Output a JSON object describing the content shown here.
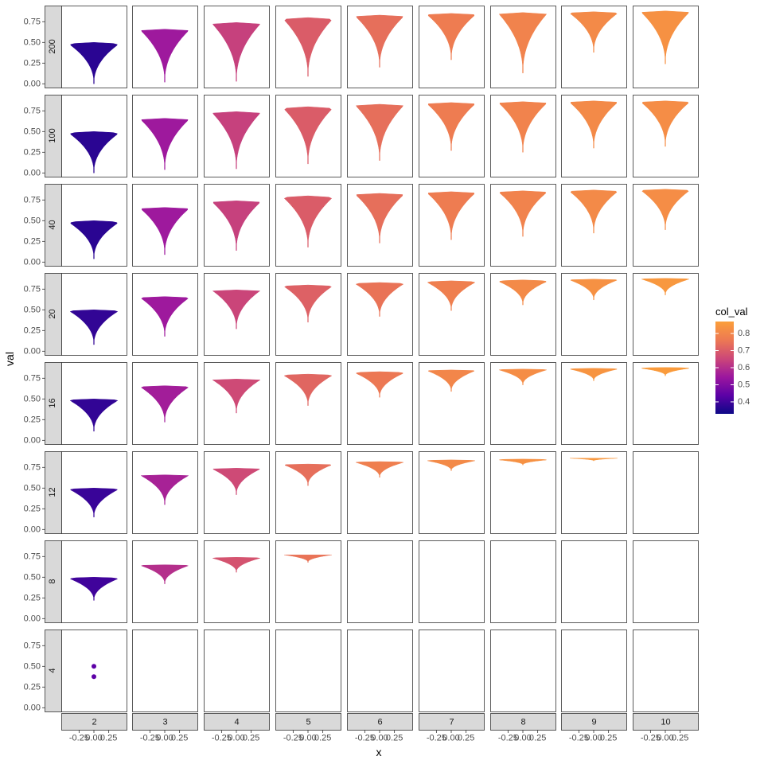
{
  "chart_data": {
    "type": "violin",
    "xlabel": "x",
    "ylabel": "val",
    "x_ticks": [
      "-0.25",
      "0.00",
      "0.25"
    ],
    "x_tick_values": [
      -0.25,
      0.0,
      0.25
    ],
    "xlim": [
      -0.55,
      0.55
    ],
    "y_ticks": [
      "0.00",
      "0.25",
      "0.50",
      "0.75"
    ],
    "y_tick_values": [
      0.0,
      0.25,
      0.5,
      0.75
    ],
    "ylim": [
      -0.045,
      0.945
    ],
    "column_facets": [
      "2",
      "3",
      "4",
      "5",
      "6",
      "7",
      "8",
      "9",
      "10"
    ],
    "row_facets": [
      "200",
      "100",
      "40",
      "20",
      "16",
      "12",
      "8",
      "4"
    ],
    "legend": {
      "title": "col_val",
      "position": "right",
      "ticks": [
        "0.4",
        "0.5",
        "0.6",
        "0.7",
        "0.8"
      ],
      "tick_values": [
        0.4,
        0.5,
        0.6,
        0.7,
        0.8
      ],
      "range": [
        0.33,
        0.87
      ],
      "gradient": [
        "#0d0887",
        "#5c01a6",
        "#9c179e",
        "#cc4778",
        "#ed7953",
        "#fb9f3a"
      ]
    },
    "panels": [
      {
        "row": "200",
        "col": "2",
        "min": 0.0,
        "max": 0.5,
        "top": 0.47,
        "color_value": 0.37
      },
      {
        "row": "200",
        "col": "3",
        "min": 0.02,
        "max": 0.66,
        "top": 0.64,
        "color_value": 0.55
      },
      {
        "row": "200",
        "col": "4",
        "min": 0.03,
        "max": 0.74,
        "top": 0.72,
        "color_value": 0.64
      },
      {
        "row": "200",
        "col": "5",
        "min": 0.09,
        "max": 0.8,
        "top": 0.77,
        "color_value": 0.7
      },
      {
        "row": "200",
        "col": "6",
        "min": 0.2,
        "max": 0.83,
        "top": 0.81,
        "color_value": 0.74
      },
      {
        "row": "200",
        "col": "7",
        "min": 0.29,
        "max": 0.85,
        "top": 0.83,
        "color_value": 0.77
      },
      {
        "row": "200",
        "col": "8",
        "min": 0.13,
        "max": 0.86,
        "top": 0.84,
        "color_value": 0.79
      },
      {
        "row": "200",
        "col": "9",
        "min": 0.38,
        "max": 0.87,
        "top": 0.85,
        "color_value": 0.81
      },
      {
        "row": "200",
        "col": "10",
        "min": 0.24,
        "max": 0.88,
        "top": 0.86,
        "color_value": 0.83
      },
      {
        "row": "100",
        "col": "2",
        "min": 0.0,
        "max": 0.5,
        "top": 0.47,
        "color_value": 0.37
      },
      {
        "row": "100",
        "col": "3",
        "min": 0.04,
        "max": 0.66,
        "top": 0.64,
        "color_value": 0.55
      },
      {
        "row": "100",
        "col": "4",
        "min": 0.05,
        "max": 0.74,
        "top": 0.72,
        "color_value": 0.64
      },
      {
        "row": "100",
        "col": "5",
        "min": 0.11,
        "max": 0.8,
        "top": 0.77,
        "color_value": 0.7
      },
      {
        "row": "100",
        "col": "6",
        "min": 0.15,
        "max": 0.83,
        "top": 0.81,
        "color_value": 0.74
      },
      {
        "row": "100",
        "col": "7",
        "min": 0.27,
        "max": 0.85,
        "top": 0.83,
        "color_value": 0.77
      },
      {
        "row": "100",
        "col": "8",
        "min": 0.25,
        "max": 0.86,
        "top": 0.84,
        "color_value": 0.79
      },
      {
        "row": "100",
        "col": "9",
        "min": 0.3,
        "max": 0.87,
        "top": 0.85,
        "color_value": 0.81
      },
      {
        "row": "100",
        "col": "10",
        "min": 0.32,
        "max": 0.87,
        "top": 0.85,
        "color_value": 0.82
      },
      {
        "row": "40",
        "col": "2",
        "min": 0.04,
        "max": 0.5,
        "top": 0.47,
        "color_value": 0.37
      },
      {
        "row": "40",
        "col": "3",
        "min": 0.09,
        "max": 0.66,
        "top": 0.64,
        "color_value": 0.55
      },
      {
        "row": "40",
        "col": "4",
        "min": 0.14,
        "max": 0.74,
        "top": 0.72,
        "color_value": 0.64
      },
      {
        "row": "40",
        "col": "5",
        "min": 0.18,
        "max": 0.8,
        "top": 0.77,
        "color_value": 0.7
      },
      {
        "row": "40",
        "col": "6",
        "min": 0.23,
        "max": 0.83,
        "top": 0.81,
        "color_value": 0.74
      },
      {
        "row": "40",
        "col": "7",
        "min": 0.27,
        "max": 0.85,
        "top": 0.83,
        "color_value": 0.77
      },
      {
        "row": "40",
        "col": "8",
        "min": 0.31,
        "max": 0.86,
        "top": 0.84,
        "color_value": 0.79
      },
      {
        "row": "40",
        "col": "9",
        "min": 0.35,
        "max": 0.87,
        "top": 0.85,
        "color_value": 0.81
      },
      {
        "row": "40",
        "col": "10",
        "min": 0.39,
        "max": 0.88,
        "top": 0.86,
        "color_value": 0.82
      },
      {
        "row": "20",
        "col": "2",
        "min": 0.08,
        "max": 0.5,
        "top": 0.48,
        "color_value": 0.38
      },
      {
        "row": "20",
        "col": "3",
        "min": 0.18,
        "max": 0.66,
        "top": 0.64,
        "color_value": 0.55
      },
      {
        "row": "20",
        "col": "4",
        "min": 0.27,
        "max": 0.74,
        "top": 0.73,
        "color_value": 0.65
      },
      {
        "row": "20",
        "col": "5",
        "min": 0.35,
        "max": 0.8,
        "top": 0.78,
        "color_value": 0.71
      },
      {
        "row": "20",
        "col": "6",
        "min": 0.42,
        "max": 0.83,
        "top": 0.81,
        "color_value": 0.75
      },
      {
        "row": "20",
        "col": "7",
        "min": 0.49,
        "max": 0.85,
        "top": 0.83,
        "color_value": 0.78
      },
      {
        "row": "20",
        "col": "8",
        "min": 0.56,
        "max": 0.86,
        "top": 0.84,
        "color_value": 0.81
      },
      {
        "row": "20",
        "col": "9",
        "min": 0.62,
        "max": 0.87,
        "top": 0.86,
        "color_value": 0.83
      },
      {
        "row": "20",
        "col": "10",
        "min": 0.68,
        "max": 0.88,
        "top": 0.87,
        "color_value": 0.85
      },
      {
        "row": "16",
        "col": "2",
        "min": 0.11,
        "max": 0.5,
        "top": 0.48,
        "color_value": 0.38
      },
      {
        "row": "16",
        "col": "3",
        "min": 0.22,
        "max": 0.66,
        "top": 0.64,
        "color_value": 0.56
      },
      {
        "row": "16",
        "col": "4",
        "min": 0.33,
        "max": 0.74,
        "top": 0.73,
        "color_value": 0.66
      },
      {
        "row": "16",
        "col": "5",
        "min": 0.42,
        "max": 0.8,
        "top": 0.78,
        "color_value": 0.72
      },
      {
        "row": "16",
        "col": "6",
        "min": 0.52,
        "max": 0.83,
        "top": 0.81,
        "color_value": 0.76
      },
      {
        "row": "16",
        "col": "7",
        "min": 0.59,
        "max": 0.85,
        "top": 0.84,
        "color_value": 0.8
      },
      {
        "row": "16",
        "col": "8",
        "min": 0.67,
        "max": 0.86,
        "top": 0.85,
        "color_value": 0.82
      },
      {
        "row": "16",
        "col": "9",
        "min": 0.72,
        "max": 0.87,
        "top": 0.86,
        "color_value": 0.84
      },
      {
        "row": "16",
        "col": "10",
        "min": 0.78,
        "max": 0.88,
        "top": 0.87,
        "color_value": 0.86
      },
      {
        "row": "12",
        "col": "2",
        "min": 0.15,
        "max": 0.5,
        "top": 0.48,
        "color_value": 0.39
      },
      {
        "row": "12",
        "col": "3",
        "min": 0.3,
        "max": 0.66,
        "top": 0.65,
        "color_value": 0.57
      },
      {
        "row": "12",
        "col": "4",
        "min": 0.42,
        "max": 0.74,
        "top": 0.73,
        "color_value": 0.66
      },
      {
        "row": "12",
        "col": "5",
        "min": 0.53,
        "max": 0.79,
        "top": 0.78,
        "color_value": 0.74
      },
      {
        "row": "12",
        "col": "6",
        "min": 0.63,
        "max": 0.82,
        "top": 0.81,
        "color_value": 0.78
      },
      {
        "row": "12",
        "col": "7",
        "min": 0.71,
        "max": 0.84,
        "top": 0.83,
        "color_value": 0.81
      },
      {
        "row": "12",
        "col": "8",
        "min": 0.78,
        "max": 0.85,
        "top": 0.84,
        "color_value": 0.83
      },
      {
        "row": "12",
        "col": "9",
        "min": 0.83,
        "max": 0.86,
        "top": 0.86,
        "color_value": 0.85
      },
      {
        "row": "8",
        "col": "2",
        "min": 0.22,
        "max": 0.5,
        "top": 0.48,
        "color_value": 0.4
      },
      {
        "row": "8",
        "col": "3",
        "min": 0.42,
        "max": 0.65,
        "top": 0.64,
        "color_value": 0.6
      },
      {
        "row": "8",
        "col": "4",
        "min": 0.56,
        "max": 0.74,
        "top": 0.73,
        "color_value": 0.68
      },
      {
        "row": "8",
        "col": "5",
        "min": 0.68,
        "max": 0.77,
        "top": 0.77,
        "color_value": 0.75
      },
      {
        "row": "4",
        "col": "2",
        "points": [
          0.5,
          0.375
        ],
        "color_value": 0.44
      }
    ]
  }
}
